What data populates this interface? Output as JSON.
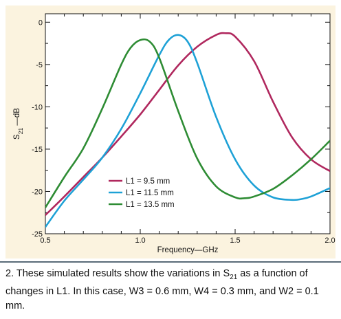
{
  "chart_data": {
    "type": "line",
    "title": "",
    "xlabel": "Frequency—GHz",
    "ylabel_main": "S",
    "ylabel_sub": "21",
    "ylabel_suffix": " —dB",
    "xlim": [
      0.5,
      2.0
    ],
    "ylim": [
      -25,
      1
    ],
    "x_ticks": [
      0.5,
      1.0,
      1.5,
      2.0
    ],
    "x_tick_labels": [
      "0.5",
      "1.0",
      "1.5",
      "2.0"
    ],
    "y_ticks": [
      0,
      -5,
      -10,
      -15,
      -20,
      -25
    ],
    "y_tick_labels": [
      "0",
      "-5",
      "-10",
      "-15",
      "-20",
      "-25"
    ],
    "grid": false,
    "legend_position": "lower-center",
    "series": [
      {
        "name": "L1 = 9.5 mm",
        "color": "#b0285e",
        "x": [
          0.5,
          0.6,
          0.7,
          0.8,
          0.9,
          1.0,
          1.1,
          1.2,
          1.3,
          1.4,
          1.45,
          1.5,
          1.6,
          1.7,
          1.8,
          1.9,
          2.0
        ],
        "y": [
          -22.8,
          -20.6,
          -18.3,
          -16.0,
          -13.5,
          -10.9,
          -8.0,
          -5.1,
          -2.9,
          -1.5,
          -1.3,
          -1.7,
          -4.6,
          -9.4,
          -13.6,
          -16.2,
          -17.6
        ]
      },
      {
        "name": "L1 = 11.5 mm",
        "color": "#1ea1d6",
        "x": [
          0.5,
          0.6,
          0.7,
          0.8,
          0.9,
          1.0,
          1.1,
          1.15,
          1.2,
          1.25,
          1.3,
          1.4,
          1.5,
          1.6,
          1.7,
          1.8,
          1.85,
          1.9,
          2.0
        ],
        "y": [
          -24.2,
          -21.1,
          -18.6,
          -16.0,
          -12.6,
          -8.4,
          -3.9,
          -2.1,
          -1.5,
          -2.3,
          -4.8,
          -11.2,
          -16.2,
          -19.3,
          -20.7,
          -21.0,
          -20.9,
          -20.6,
          -19.6
        ]
      },
      {
        "name": "L1 = 13.5 mm",
        "color": "#2e8c34",
        "x": [
          0.5,
          0.6,
          0.7,
          0.8,
          0.9,
          0.95,
          1.0,
          1.05,
          1.1,
          1.2,
          1.3,
          1.4,
          1.5,
          1.55,
          1.6,
          1.7,
          1.8,
          1.9,
          2.0
        ],
        "y": [
          -21.9,
          -18.3,
          -14.9,
          -10.2,
          -5.0,
          -3.0,
          -2.1,
          -2.3,
          -4.2,
          -10.5,
          -16.1,
          -19.4,
          -20.7,
          -20.8,
          -20.6,
          -19.7,
          -18.1,
          -16.2,
          -14.0
        ]
      }
    ]
  },
  "caption": {
    "part1": "2. These simulated results show the variations in S",
    "sub": "21",
    "part2": " as a function of changes in L1. In this case, W3 = 0.6 mm, W4 = 0.3 mm, and W2 = 0.1 mm."
  }
}
